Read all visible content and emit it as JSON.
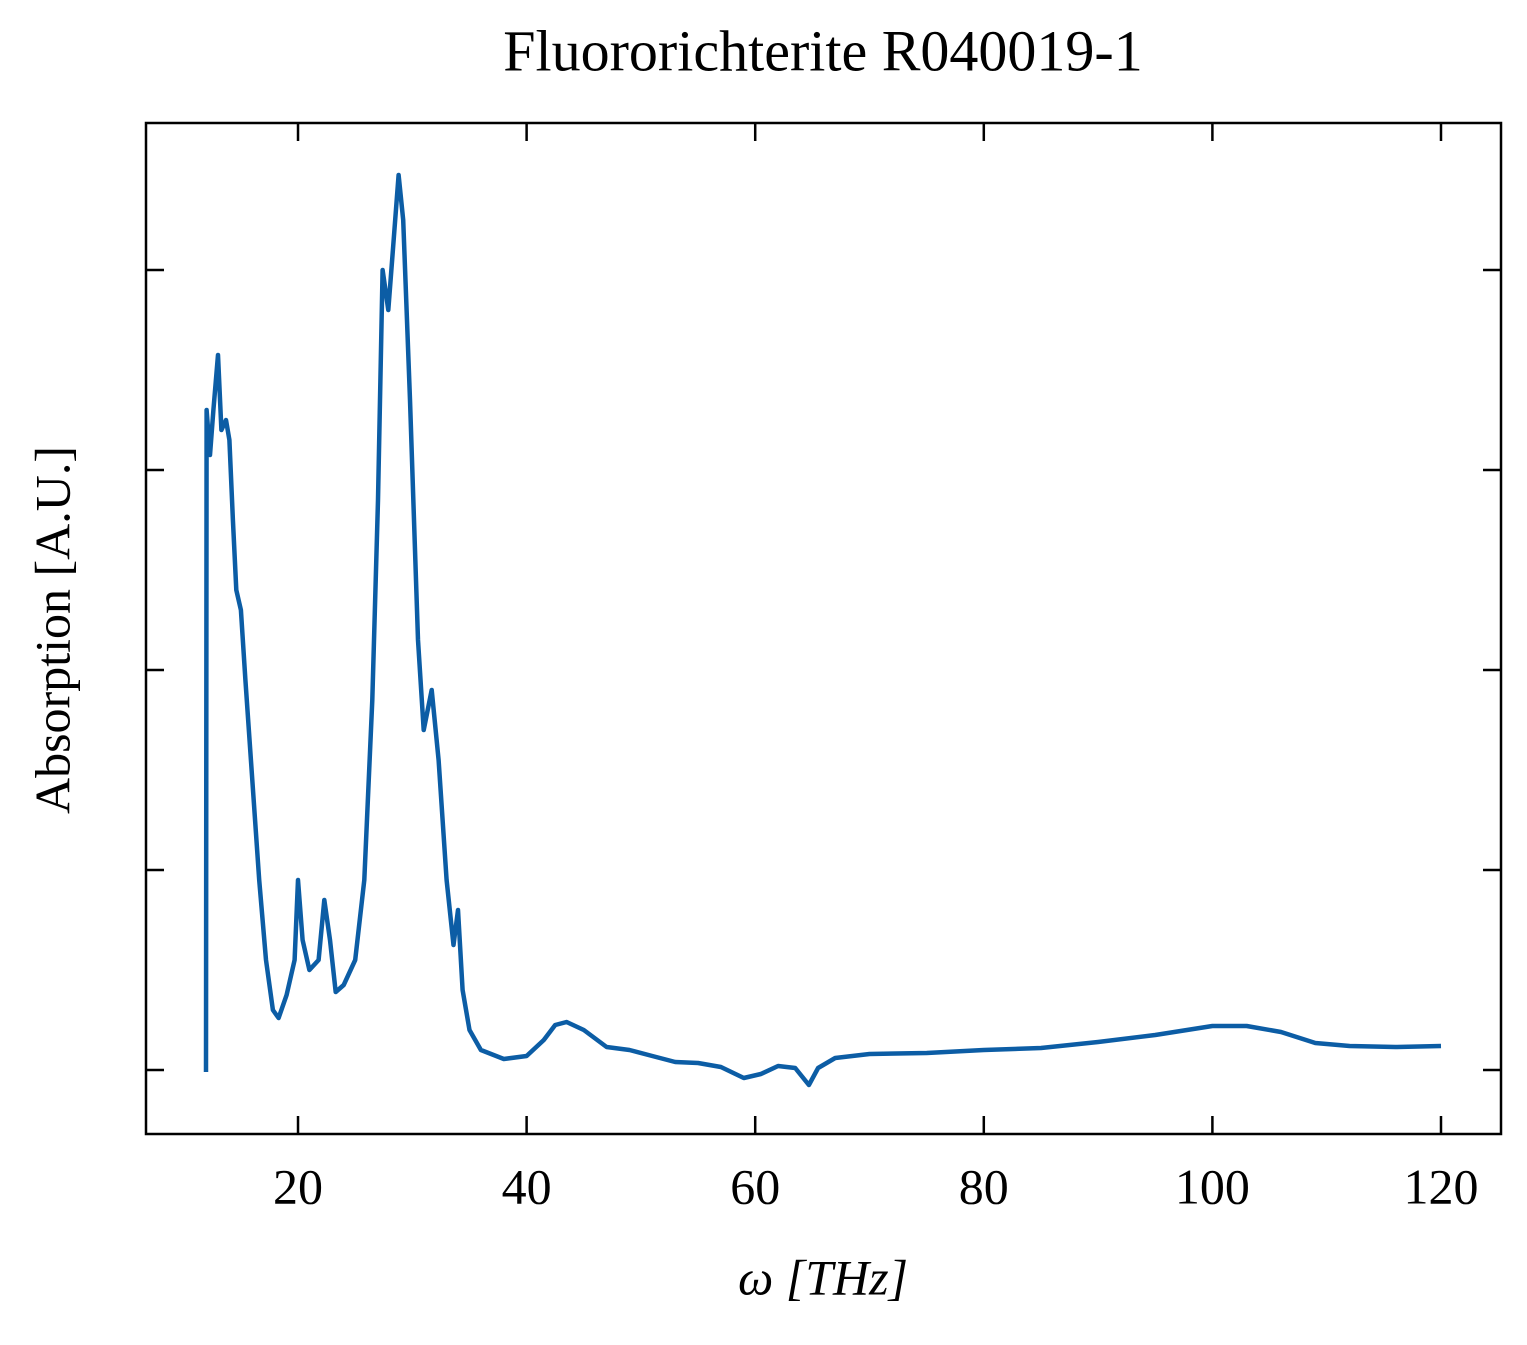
{
  "chart_data": {
    "type": "line",
    "title": "Fluororichterite R040019-1",
    "xlabel": "ω [THz]",
    "ylabel": "Absorption [A.U.]",
    "color": "#0c5da5",
    "xlim": [
      6.7,
      125.25
    ],
    "ylim": [
      -0.064,
      0.947
    ],
    "xticks": [
      20,
      40,
      60,
      80,
      100,
      120
    ],
    "yticks": [
      0,
      0.2,
      0.4,
      0.6,
      0.8
    ],
    "x": [
      11.95,
      12.0,
      12.3,
      12.6,
      13.0,
      13.3,
      13.7,
      14.0,
      14.3,
      14.6,
      15.0,
      15.4,
      16.0,
      16.6,
      17.2,
      17.8,
      18.3,
      19.0,
      19.7,
      20.0,
      20.4,
      21.0,
      21.8,
      22.3,
      22.8,
      23.3,
      24.0,
      25.0,
      25.8,
      26.5,
      27.0,
      27.4,
      27.9,
      28.3,
      28.8,
      29.2,
      29.8,
      30.5,
      31.0,
      31.7,
      32.3,
      33.0,
      33.6,
      34.0,
      34.4,
      35.0,
      36.0,
      38.0,
      40.0,
      41.5,
      42.5,
      43.5,
      45.0,
      47.0,
      49.0,
      51.0,
      53.0,
      55.0,
      57.0,
      59.0,
      60.5,
      62.0,
      63.5,
      64.7,
      65.5,
      67.0,
      70.0,
      75.0,
      80.0,
      85.0,
      90.0,
      95.0,
      100.0,
      103.0,
      106.0,
      109.0,
      112.0,
      116.0,
      120.0
    ],
    "values": [
      -0.002,
      0.66,
      0.615,
      0.66,
      0.715,
      0.64,
      0.65,
      0.63,
      0.55,
      0.48,
      0.46,
      0.39,
      0.29,
      0.19,
      0.11,
      0.06,
      0.052,
      0.075,
      0.11,
      0.19,
      0.13,
      0.1,
      0.11,
      0.17,
      0.13,
      0.078,
      0.085,
      0.11,
      0.19,
      0.37,
      0.57,
      0.8,
      0.76,
      0.82,
      0.895,
      0.85,
      0.67,
      0.43,
      0.34,
      0.38,
      0.31,
      0.19,
      0.125,
      0.16,
      0.08,
      0.04,
      0.02,
      0.011,
      0.014,
      0.03,
      0.045,
      0.048,
      0.04,
      0.023,
      0.02,
      0.014,
      0.008,
      0.007,
      0.003,
      -0.008,
      -0.004,
      0.004,
      0.002,
      -0.015,
      0.002,
      0.012,
      0.016,
      0.017,
      0.02,
      0.022,
      0.028,
      0.035,
      0.044,
      0.044,
      0.038,
      0.027,
      0.024,
      0.023,
      0.024
    ]
  }
}
